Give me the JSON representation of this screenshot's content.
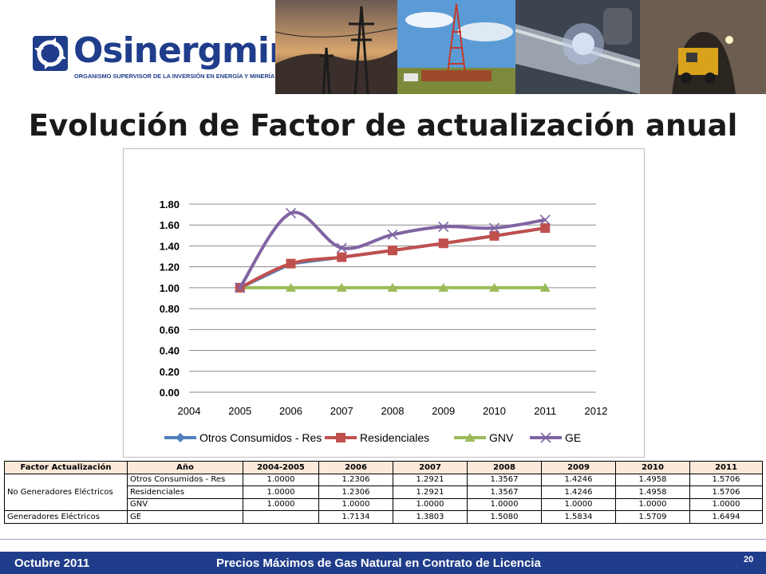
{
  "header": {
    "logo_name": "Osinergmin",
    "logo_subtitle": "ORGANISMO SUPERVISOR DE LA INVERSIÓN EN ENERGÍA Y MINERÍA",
    "brand_color": "#1f3d8a",
    "photos": [
      "power-towers-sunset",
      "oil-drilling-rig",
      "pipeline-welding",
      "mining-tunnel"
    ]
  },
  "title": "Evolución de Factor de actualización anual",
  "chart_data": {
    "type": "line",
    "x": [
      2005,
      2006,
      2007,
      2008,
      2009,
      2010,
      2011
    ],
    "xlim": [
      2004,
      2012
    ],
    "x_ticks": [
      "2004",
      "2005",
      "2006",
      "2007",
      "2008",
      "2009",
      "2010",
      "2011",
      "2012"
    ],
    "ylim": [
      0,
      1.8
    ],
    "y_ticks": [
      "0.00",
      "0.20",
      "0.40",
      "0.60",
      "0.80",
      "1.00",
      "1.20",
      "1.40",
      "1.60",
      "1.80"
    ],
    "grid": true,
    "legend_position": "bottom",
    "series": [
      {
        "name": "Otros Consumidos  - Res",
        "color": "#4f81bd",
        "marker": "diamond",
        "smooth": false,
        "values": [
          1.0,
          1.2306,
          1.2921,
          1.3567,
          1.4246,
          1.4958,
          1.5706
        ]
      },
      {
        "name": "Residenciales",
        "color": "#c0504d",
        "marker": "square",
        "smooth": true,
        "values": [
          1.0,
          1.2306,
          1.2921,
          1.3567,
          1.4246,
          1.4958,
          1.5706
        ]
      },
      {
        "name": "GNV",
        "color": "#9bbb59",
        "marker": "triangle",
        "smooth": false,
        "values": [
          1.0,
          1.0,
          1.0,
          1.0,
          1.0,
          1.0,
          1.0
        ]
      },
      {
        "name": "GE",
        "color": "#8064a2",
        "marker": "x",
        "smooth": true,
        "values": [
          1.0,
          1.7134,
          1.3803,
          1.508,
          1.5834,
          1.5709,
          1.6494
        ]
      }
    ]
  },
  "table": {
    "headers": [
      "Factor Actualización",
      "Año",
      "2004-2005",
      "2006",
      "2007",
      "2008",
      "2009",
      "2010",
      "2011"
    ],
    "groups": [
      {
        "label": "No Generadores Eléctricos",
        "rows": [
          {
            "name": "Otros Consumidos - Res",
            "values": [
              "1.0000",
              "1.2306",
              "1.2921",
              "1.3567",
              "1.4246",
              "1.4958",
              "1.5706"
            ]
          },
          {
            "name": "Residenciales",
            "values": [
              "1.0000",
              "1.2306",
              "1.2921",
              "1.3567",
              "1.4246",
              "1.4958",
              "1.5706"
            ]
          },
          {
            "name": "GNV",
            "values": [
              "1.0000",
              "1.0000",
              "1.0000",
              "1.0000",
              "1.0000",
              "1.0000",
              "1.0000"
            ]
          }
        ]
      },
      {
        "label": "Generadores Eléctricos",
        "rows": [
          {
            "name": "GE",
            "values": [
              "",
              "1.7134",
              "1.3803",
              "1.5080",
              "1.5834",
              "1.5709",
              "1.6494"
            ]
          }
        ]
      }
    ]
  },
  "footer": {
    "date": "Octubre 2011",
    "description": "Precios  Máximos de Gas Natural en Contrato de Licencia",
    "page_number": "20"
  }
}
